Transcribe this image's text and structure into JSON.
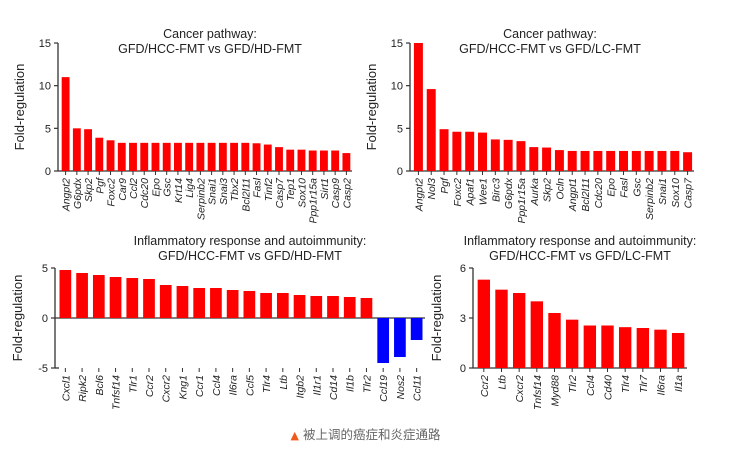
{
  "chart_data": [
    {
      "type": "bar",
      "title": [
        "Cancer pathway:",
        "GFD/HCC-FMT vs GFD/HD-FMT"
      ],
      "ylabel": "Fold-regulation",
      "ylim": [
        0,
        15
      ],
      "yticks": [
        0,
        5,
        10,
        15
      ],
      "categories": [
        "Angpt2",
        "G6pdx",
        "Skp2",
        "Pgf",
        "Foxc2",
        "Car9",
        "Ccl2",
        "Cdc20",
        "Epo",
        "Gsc",
        "Krt14",
        "Lig4",
        "Serpinb2",
        "Snai1",
        "Snai3",
        "Tbx2",
        "Bcl2l11",
        "Fasl",
        "Tinf2",
        "Casp7",
        "Tep1",
        "Sox10",
        "Ppp1r15a",
        "Sirt1",
        "Casp9",
        "Casp2"
      ],
      "values": [
        11.0,
        5.0,
        4.9,
        3.9,
        3.6,
        3.3,
        3.3,
        3.3,
        3.3,
        3.3,
        3.3,
        3.3,
        3.3,
        3.3,
        3.3,
        3.3,
        3.3,
        3.25,
        3.1,
        2.8,
        2.5,
        2.5,
        2.4,
        2.4,
        2.4,
        2.1
      ],
      "colors": {
        "up": "#ff0000",
        "down": "#0000ff"
      }
    },
    {
      "type": "bar",
      "title": [
        "Cancer pathway:",
        "GFD/HCC-FMT vs GFD/LC-FMT"
      ],
      "ylabel": "Fold-regulation",
      "ylim": [
        0,
        15
      ],
      "yticks": [
        0,
        5,
        10,
        15
      ],
      "categories": [
        "Angpt2",
        "Nol3",
        "Pgf",
        "Foxc2",
        "Apaf1",
        "Wee1",
        "Birc3",
        "G6pdx",
        "Ppp1r15a",
        "Aurka",
        "Skp2",
        "Ocln",
        "Angpt1",
        "Bcl2l11",
        "Cdc20",
        "Epo",
        "Fasl",
        "Gsc",
        "Serpinb2",
        "Snai1",
        "Sox10",
        "Casp7"
      ],
      "values": [
        15.0,
        9.6,
        4.9,
        4.6,
        4.6,
        4.5,
        3.7,
        3.65,
        3.5,
        2.8,
        2.75,
        2.45,
        2.35,
        2.35,
        2.35,
        2.35,
        2.35,
        2.35,
        2.35,
        2.35,
        2.35,
        2.2
      ],
      "colors": {
        "up": "#ff0000",
        "down": "#0000ff"
      }
    },
    {
      "type": "bar",
      "title": [
        "Inflammatory response and autoimmunity:",
        "GFD/HCC-FMT vs GFD/HD-FMT"
      ],
      "ylabel": "Fold-regulation",
      "ylim": [
        -5,
        5
      ],
      "yticks": [
        -5,
        0,
        5
      ],
      "categories": [
        "Cxcl1",
        "Ripk2",
        "Bcl6",
        "Tnfsf14",
        "Tlr1",
        "Ccr2",
        "Cxcr2",
        "Kng1",
        "Ccr1",
        "Ccl4",
        "Il6ra",
        "Ccl5",
        "Tlr4",
        "Ltb",
        "Itgb2",
        "Il1r1",
        "Cd14",
        "Il1b",
        "Tlr2",
        "Ccl19",
        "Nos2",
        "Ccl11"
      ],
      "values": [
        4.8,
        4.5,
        4.3,
        4.1,
        4.0,
        3.9,
        3.3,
        3.2,
        3.0,
        3.0,
        2.8,
        2.7,
        2.5,
        2.5,
        2.3,
        2.2,
        2.2,
        2.1,
        2.0,
        -4.5,
        -3.9,
        -2.2
      ],
      "colors": {
        "up": "#ff0000",
        "down": "#0000ff"
      }
    },
    {
      "type": "bar",
      "title": [
        "Inflammatory response and autoimmunity:",
        "GFD/HCC-FMT vs GFD/LC-FMT"
      ],
      "ylabel": "Fold-regulation",
      "ylim": [
        0,
        6
      ],
      "yticks": [
        0,
        3,
        6
      ],
      "categories": [
        "Ccr2",
        "Ltb",
        "Cxcr2",
        "Tnfsf14",
        "Myd88",
        "Tlr2",
        "Ccl4",
        "Cd40",
        "Tlr4",
        "Tlr7",
        "Il6ra",
        "Il1a"
      ],
      "values": [
        5.3,
        4.7,
        4.5,
        4.0,
        3.3,
        2.9,
        2.55,
        2.55,
        2.45,
        2.4,
        2.3,
        2.1
      ],
      "colors": {
        "up": "#ff0000",
        "down": "#0000ff"
      }
    }
  ],
  "caption": {
    "icon": "triangle-up-icon",
    "icon_color": "#f05a1a",
    "text": "被上调的癌症和炎症通路"
  }
}
